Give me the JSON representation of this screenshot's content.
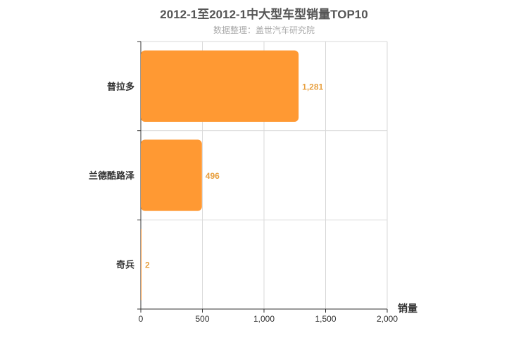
{
  "chart_data": {
    "type": "bar",
    "orientation": "horizontal",
    "title": "2012-1至2012-1中大型车型销量TOP10",
    "subtitle": "数据整理：盖世汽车研究院",
    "categories": [
      "普拉多",
      "兰德酷路泽",
      "奇兵"
    ],
    "values": [
      1281,
      496,
      2
    ],
    "data_labels": [
      "1,281",
      "496",
      "2"
    ],
    "xlabel": "销量",
    "ylabel": "",
    "xlim": [
      0,
      2000
    ],
    "x_ticks": [
      0,
      500,
      1000,
      1500,
      2000
    ],
    "x_tick_labels": [
      "0",
      "500",
      "1,000",
      "1,500",
      "2,000"
    ],
    "grid": true,
    "bar_color": "#ff9933",
    "label_color": "#e8a040"
  }
}
